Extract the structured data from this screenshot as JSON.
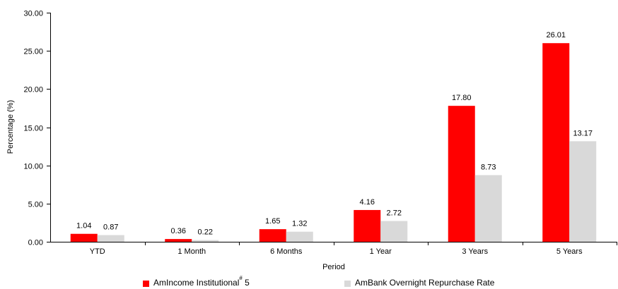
{
  "chart_data": {
    "type": "bar",
    "title": "",
    "xlabel": "Period",
    "ylabel": "Percentage (%)",
    "ylim": [
      0,
      30
    ],
    "yticks": [
      "0.00",
      "5.00",
      "10.00",
      "15.00",
      "20.00",
      "25.00",
      "30.00"
    ],
    "grid": false,
    "legend_position": "bottom",
    "categories": [
      "YTD",
      "1 Month",
      "6 Months",
      "1 Year",
      "3 Years",
      "5 Years"
    ],
    "series": [
      {
        "name": "AmIncome Institutional",
        "name_superscript": "#",
        "name_suffix": " 5",
        "color": "#ff0000",
        "values": [
          1.04,
          0.36,
          1.65,
          4.16,
          17.8,
          26.01
        ],
        "labels": [
          "1.04",
          "0.36",
          "1.65",
          "4.16",
          "17.80",
          "26.01"
        ]
      },
      {
        "name": "AmBank Overnight Repurchase Rate",
        "color": "#d9d9d9",
        "values": [
          0.87,
          0.22,
          1.32,
          2.72,
          8.73,
          13.17
        ],
        "labels": [
          "0.87",
          "0.22",
          "1.32",
          "2.72",
          "8.73",
          "13.17"
        ]
      }
    ]
  }
}
